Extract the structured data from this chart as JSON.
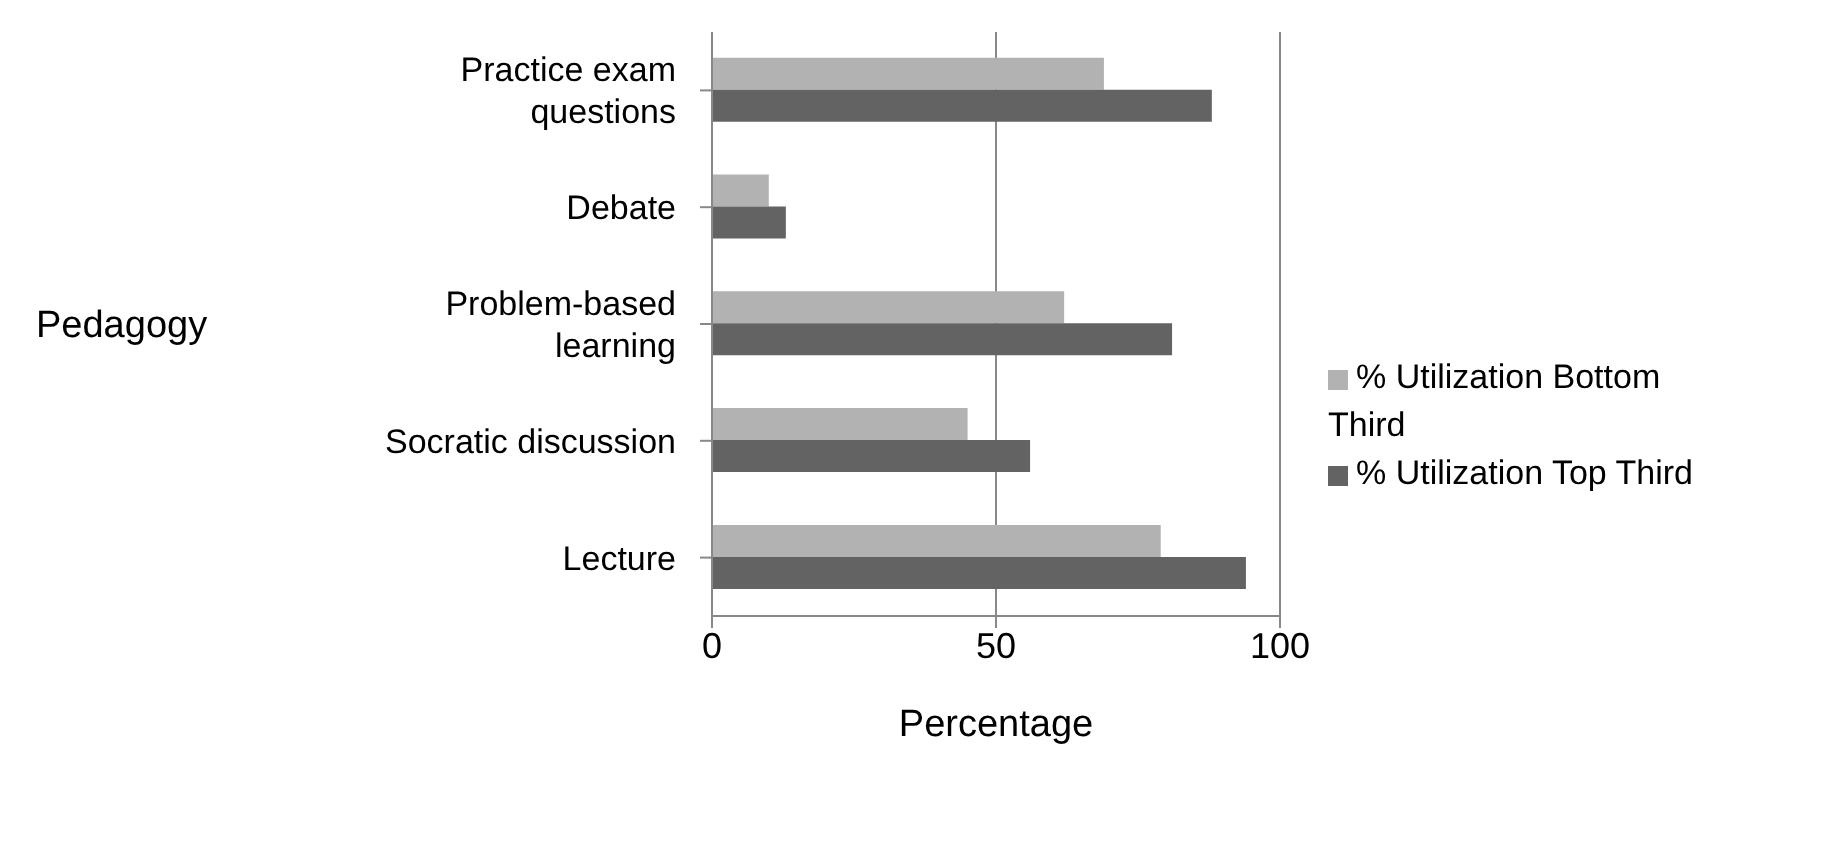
{
  "chart_data": {
    "type": "bar",
    "orientation": "horizontal",
    "xlabel": "Percentage",
    "ylabel": "Pedagogy",
    "categories": [
      "Practice exam questions",
      "Debate",
      "Problem-based learning",
      "Socratic discussion",
      "Lecture"
    ],
    "series": [
      {
        "name": "% Utilization Bottom Third",
        "color": "#b2b2b2",
        "values": [
          69,
          10,
          62,
          45,
          79
        ]
      },
      {
        "name": "% Utilization Top Third",
        "color": "#636363",
        "values": [
          88,
          13,
          81,
          56,
          94
        ]
      }
    ],
    "xlim": [
      0,
      100
    ],
    "xticks": [
      0,
      50,
      100
    ],
    "grid": "x",
    "legend": "right"
  }
}
